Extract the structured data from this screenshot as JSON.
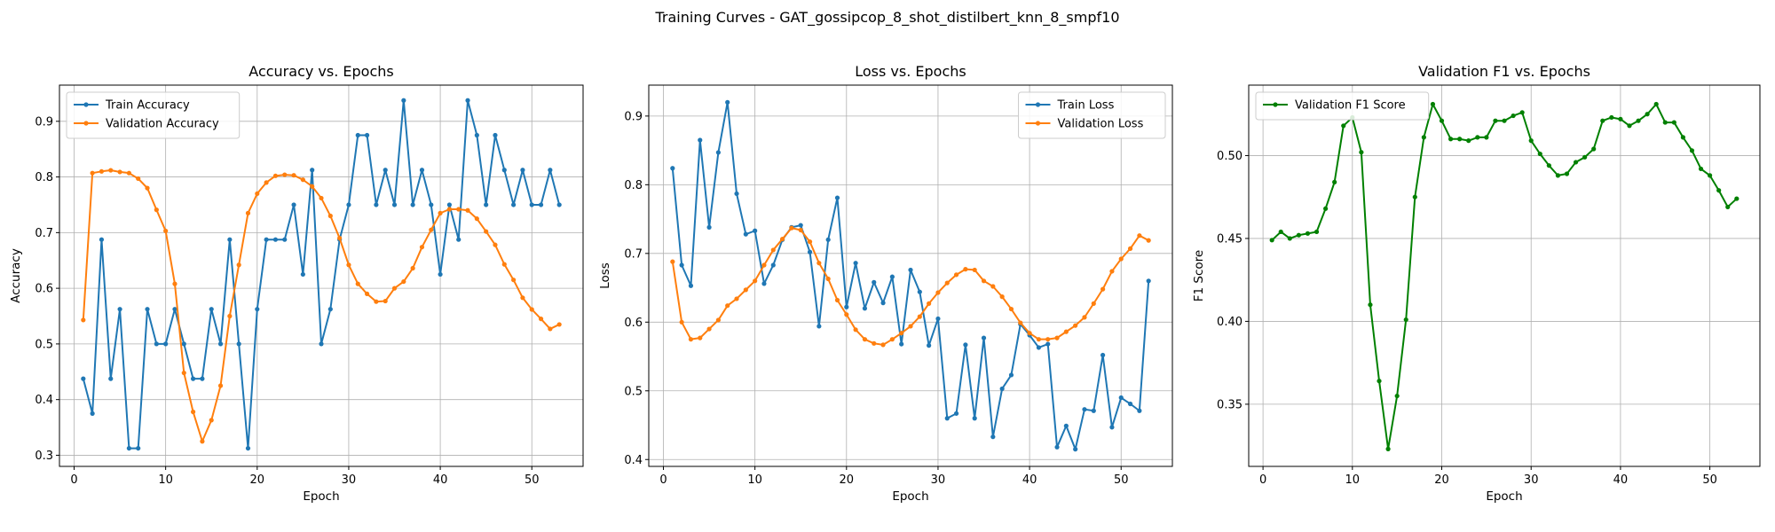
{
  "figure": {
    "suptitle": "Training Curves - GAT_gossipcop_8_shot_distilbert_knn_8_smpf10"
  },
  "colors": {
    "train": "#1f77b4",
    "validation": "#ff7f0e",
    "f1": "#008000",
    "grid": "#b0b0b0"
  },
  "chart_data": [
    {
      "type": "line",
      "title": "Accuracy vs. Epochs",
      "xlabel": "Epoch",
      "ylabel": "Accuracy",
      "xlim": [
        -1.6,
        55.6
      ],
      "ylim": [
        0.28,
        0.965
      ],
      "xticks": [
        0,
        10,
        20,
        30,
        40,
        50
      ],
      "yticks": [
        0.3,
        0.4,
        0.5,
        0.6,
        0.7,
        0.8,
        0.9
      ],
      "grid": true,
      "legend": "upper-left",
      "x": [
        1,
        2,
        3,
        4,
        5,
        6,
        7,
        8,
        9,
        10,
        11,
        12,
        13,
        14,
        15,
        16,
        17,
        18,
        19,
        20,
        21,
        22,
        23,
        24,
        25,
        26,
        27,
        28,
        29,
        30,
        31,
        32,
        33,
        34,
        35,
        36,
        37,
        38,
        39,
        40,
        41,
        42,
        43,
        44,
        45,
        46,
        47,
        48,
        49,
        50,
        51,
        52,
        53
      ],
      "series": [
        {
          "name": "Train Accuracy",
          "color": "#1f77b4",
          "values": [
            0.4375,
            0.375,
            0.6875,
            0.4375,
            0.5625,
            0.3125,
            0.3125,
            0.5625,
            0.5,
            0.5,
            0.5625,
            0.5,
            0.4375,
            0.4375,
            0.5625,
            0.5,
            0.6875,
            0.5,
            0.3125,
            0.5625,
            0.6875,
            0.6875,
            0.6875,
            0.75,
            0.625,
            0.8125,
            0.5,
            0.5625,
            0.6875,
            0.75,
            0.875,
            0.875,
            0.75,
            0.8125,
            0.75,
            0.9375,
            0.75,
            0.8125,
            0.75,
            0.625,
            0.75,
            0.6875,
            0.9375,
            0.875,
            0.75,
            0.875,
            0.8125,
            0.75,
            0.8125,
            0.75,
            0.75,
            0.8125,
            0.75
          ]
        },
        {
          "name": "Validation Accuracy",
          "color": "#ff7f0e",
          "values": [
            0.543,
            0.807,
            0.81,
            0.812,
            0.809,
            0.807,
            0.797,
            0.78,
            0.741,
            0.703,
            0.608,
            0.448,
            0.378,
            0.325,
            0.363,
            0.425,
            0.55,
            0.642,
            0.735,
            0.77,
            0.79,
            0.802,
            0.804,
            0.803,
            0.795,
            0.783,
            0.762,
            0.73,
            0.69,
            0.642,
            0.608,
            0.59,
            0.576,
            0.577,
            0.6,
            0.612,
            0.636,
            0.674,
            0.705,
            0.735,
            0.742,
            0.742,
            0.74,
            0.725,
            0.702,
            0.678,
            0.643,
            0.615,
            0.583,
            0.562,
            0.545,
            0.527,
            0.535
          ]
        }
      ]
    },
    {
      "type": "line",
      "title": "Loss vs. Epochs",
      "xlabel": "Epoch",
      "ylabel": "Loss",
      "xlim": [
        -1.6,
        55.6
      ],
      "ylim": [
        0.39,
        0.945
      ],
      "xticks": [
        0,
        10,
        20,
        30,
        40,
        50
      ],
      "yticks": [
        0.4,
        0.5,
        0.6,
        0.7,
        0.8,
        0.9
      ],
      "grid": true,
      "legend": "upper-right",
      "x": [
        1,
        2,
        3,
        4,
        5,
        6,
        7,
        8,
        9,
        10,
        11,
        12,
        13,
        14,
        15,
        16,
        17,
        18,
        19,
        20,
        21,
        22,
        23,
        24,
        25,
        26,
        27,
        28,
        29,
        30,
        31,
        32,
        33,
        34,
        35,
        36,
        37,
        38,
        39,
        40,
        41,
        42,
        43,
        44,
        45,
        46,
        47,
        48,
        49,
        50,
        51,
        52,
        53
      ],
      "series": [
        {
          "name": "Train Loss",
          "color": "#1f77b4",
          "values": [
            0.824,
            0.683,
            0.653,
            0.865,
            0.738,
            0.847,
            0.92,
            0.787,
            0.728,
            0.733,
            0.656,
            0.683,
            0.72,
            0.738,
            0.741,
            0.702,
            0.594,
            0.72,
            0.781,
            0.622,
            0.686,
            0.62,
            0.658,
            0.628,
            0.666,
            0.568,
            0.676,
            0.644,
            0.566,
            0.605,
            0.46,
            0.467,
            0.567,
            0.46,
            0.577,
            0.433,
            0.503,
            0.523,
            0.597,
            0.581,
            0.563,
            0.568,
            0.418,
            0.449,
            0.415,
            0.473,
            0.471,
            0.552,
            0.447,
            0.49,
            0.481,
            0.471,
            0.66
          ]
        },
        {
          "name": "Validation Loss",
          "color": "#ff7f0e",
          "values": [
            0.688,
            0.6,
            0.575,
            0.577,
            0.59,
            0.603,
            0.624,
            0.634,
            0.647,
            0.66,
            0.683,
            0.705,
            0.721,
            0.737,
            0.734,
            0.717,
            0.686,
            0.663,
            0.632,
            0.611,
            0.589,
            0.575,
            0.569,
            0.567,
            0.575,
            0.584,
            0.594,
            0.608,
            0.627,
            0.643,
            0.657,
            0.669,
            0.677,
            0.676,
            0.66,
            0.652,
            0.637,
            0.619,
            0.599,
            0.584,
            0.575,
            0.575,
            0.577,
            0.586,
            0.595,
            0.607,
            0.627,
            0.648,
            0.674,
            0.692,
            0.707,
            0.726,
            0.719
          ]
        }
      ]
    },
    {
      "type": "line",
      "title": "Validation F1 vs. Epochs",
      "xlabel": "Epoch",
      "ylabel": "F1 Score",
      "xlim": [
        -1.6,
        55.6
      ],
      "ylim": [
        0.3125,
        0.5425
      ],
      "xticks": [
        0,
        10,
        20,
        30,
        40,
        50
      ],
      "yticks": [
        0.35,
        0.4,
        0.45,
        0.5
      ],
      "grid": true,
      "legend": "upper-left",
      "x": [
        1,
        2,
        3,
        4,
        5,
        6,
        7,
        8,
        9,
        10,
        11,
        12,
        13,
        14,
        15,
        16,
        17,
        18,
        19,
        20,
        21,
        22,
        23,
        24,
        25,
        26,
        27,
        28,
        29,
        30,
        31,
        32,
        33,
        34,
        35,
        36,
        37,
        38,
        39,
        40,
        41,
        42,
        43,
        44,
        45,
        46,
        47,
        48,
        49,
        50,
        51,
        52,
        53
      ],
      "series": [
        {
          "name": "Validation F1 Score",
          "color": "#008000",
          "values": [
            0.449,
            0.454,
            0.45,
            0.452,
            0.453,
            0.454,
            0.468,
            0.484,
            0.518,
            0.523,
            0.502,
            0.41,
            0.364,
            0.323,
            0.355,
            0.401,
            0.475,
            0.511,
            0.531,
            0.521,
            0.51,
            0.51,
            0.509,
            0.511,
            0.511,
            0.521,
            0.521,
            0.524,
            0.526,
            0.509,
            0.501,
            0.494,
            0.488,
            0.489,
            0.496,
            0.499,
            0.504,
            0.521,
            0.523,
            0.522,
            0.518,
            0.521,
            0.525,
            0.531,
            0.52,
            0.52,
            0.511,
            0.503,
            0.492,
            0.488,
            0.479,
            0.469,
            0.474
          ]
        }
      ]
    }
  ]
}
